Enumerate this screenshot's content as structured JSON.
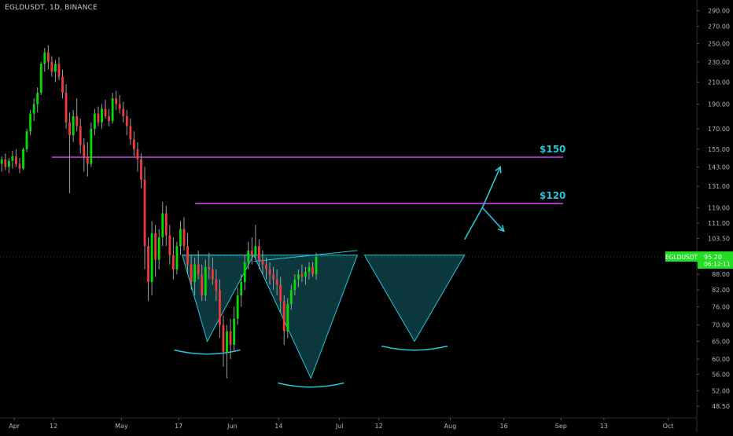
{
  "header": {
    "symbol": "EGLDUSDT",
    "timeframe": "1D",
    "exchange": "BINANCE",
    "title_text": "EGLDUSDT, 1D, BINANCE"
  },
  "price_badge": {
    "symbol": "EGLDUSDT",
    "price": "95.20",
    "countdown": "06:12:11",
    "color": "#22dd22"
  },
  "annotations": {
    "level_high_label": "$150",
    "level_low_label": "$120",
    "label_color": "#26c6da",
    "line_color": "#e040fb",
    "pattern_color": "#26c6da"
  },
  "colors": {
    "up": "#26a69a",
    "up_bright": "#00e000",
    "down": "#ef3b3b",
    "background": "#000000",
    "axis_text": "#b2b5be"
  },
  "chart_data": {
    "type": "candlestick",
    "title": "EGLDUSDT, 1D, BINANCE",
    "y_scale": "log",
    "ylim": [
      45,
      300
    ],
    "x_range": [
      "2021-03-28",
      "2021-10-09"
    ],
    "y_ticks": [
      "290.00",
      "270.00",
      "250.00",
      "230.00",
      "210.00",
      "190.00",
      "170.00",
      "155.00",
      "143.00",
      "131.00",
      "119.00",
      "111.00",
      "103.50",
      "95.20",
      "88.00",
      "82.00",
      "76.00",
      "70.00",
      "65.00",
      "60.00",
      "56.00",
      "52.00",
      "48.50"
    ],
    "x_ticks": [
      {
        "label": "Apr",
        "date": "2021-04-01"
      },
      {
        "label": "12",
        "date": "2021-04-12"
      },
      {
        "label": "May",
        "date": "2021-05-01"
      },
      {
        "label": "17",
        "date": "2021-05-17"
      },
      {
        "label": "Jun",
        "date": "2021-06-01"
      },
      {
        "label": "14",
        "date": "2021-06-14"
      },
      {
        "label": "Jul",
        "date": "2021-07-01"
      },
      {
        "label": "12",
        "date": "2021-07-12"
      },
      {
        "label": "Aug",
        "date": "2021-08-01"
      },
      {
        "label": "16",
        "date": "2021-08-16"
      },
      {
        "label": "Sep",
        "date": "2021-09-01"
      },
      {
        "label": "13",
        "date": "2021-09-13"
      },
      {
        "label": "Oct",
        "date": "2021-10-01"
      }
    ],
    "start_date": "2021-03-28",
    "candles": [
      [
        145,
        150,
        140,
        148
      ],
      [
        148,
        152,
        141,
        143
      ],
      [
        143,
        149,
        139,
        147
      ],
      [
        147,
        154,
        142,
        150
      ],
      [
        150,
        155,
        143,
        145
      ],
      [
        145,
        149,
        139,
        142
      ],
      [
        142,
        156,
        141,
        155
      ],
      [
        155,
        170,
        153,
        168
      ],
      [
        168,
        185,
        165,
        182
      ],
      [
        182,
        195,
        176,
        190
      ],
      [
        190,
        205,
        183,
        200
      ],
      [
        200,
        230,
        198,
        228
      ],
      [
        228,
        245,
        220,
        240
      ],
      [
        240,
        248,
        222,
        230
      ],
      [
        230,
        236,
        215,
        220
      ],
      [
        220,
        232,
        210,
        228
      ],
      [
        228,
        235,
        212,
        215
      ],
      [
        215,
        222,
        195,
        200
      ],
      [
        200,
        208,
        170,
        175
      ],
      [
        175,
        183,
        127,
        165
      ],
      [
        165,
        185,
        160,
        180
      ],
      [
        180,
        195,
        168,
        172
      ],
      [
        172,
        178,
        152,
        158
      ],
      [
        158,
        163,
        140,
        150
      ],
      [
        150,
        160,
        137,
        145
      ],
      [
        145,
        175,
        143,
        170
      ],
      [
        170,
        186,
        165,
        182
      ],
      [
        182,
        188,
        172,
        175
      ],
      [
        175,
        190,
        170,
        186
      ],
      [
        186,
        194,
        178,
        180
      ],
      [
        180,
        186,
        172,
        176
      ],
      [
        176,
        200,
        174,
        195
      ],
      [
        195,
        202,
        185,
        190
      ],
      [
        190,
        198,
        182,
        186
      ],
      [
        186,
        192,
        175,
        180
      ],
      [
        180,
        185,
        165,
        172
      ],
      [
        172,
        178,
        158,
        162
      ],
      [
        162,
        168,
        150,
        155
      ],
      [
        155,
        160,
        140,
        148
      ],
      [
        148,
        152,
        130,
        135
      ],
      [
        135,
        143,
        90,
        100
      ],
      [
        100,
        104,
        78,
        85
      ],
      [
        85,
        112,
        80,
        106
      ],
      [
        106,
        110,
        87,
        94
      ],
      [
        94,
        108,
        90,
        104
      ],
      [
        104,
        122,
        100,
        116
      ],
      [
        116,
        120,
        100,
        105
      ],
      [
        105,
        110,
        92,
        96
      ],
      [
        96,
        104,
        86,
        90
      ],
      [
        90,
        102,
        88,
        100
      ],
      [
        100,
        112,
        96,
        108
      ],
      [
        108,
        114,
        98,
        100
      ],
      [
        100,
        106,
        88,
        92
      ],
      [
        92,
        96,
        82,
        85
      ],
      [
        85,
        95,
        80,
        92
      ],
      [
        92,
        98,
        86,
        88
      ],
      [
        88,
        92,
        78,
        80
      ],
      [
        80,
        94,
        78,
        91
      ],
      [
        91,
        97,
        86,
        90
      ],
      [
        90,
        95,
        84,
        86
      ],
      [
        86,
        90,
        78,
        82
      ],
      [
        82,
        86,
        66,
        70
      ],
      [
        70,
        73,
        58,
        62
      ],
      [
        62,
        70,
        55,
        68
      ],
      [
        68,
        72,
        60,
        64
      ],
      [
        64,
        76,
        62,
        72
      ],
      [
        72,
        83,
        70,
        80
      ],
      [
        80,
        88,
        76,
        85
      ],
      [
        85,
        96,
        82,
        93
      ],
      [
        93,
        102,
        90,
        98
      ],
      [
        98,
        104,
        92,
        96
      ],
      [
        96,
        110,
        94,
        100
      ],
      [
        100,
        103,
        90,
        94
      ],
      [
        94,
        98,
        88,
        92
      ],
      [
        92,
        95,
        86,
        90
      ],
      [
        90,
        93,
        84,
        88
      ],
      [
        88,
        91,
        82,
        86
      ],
      [
        86,
        90,
        80,
        84
      ],
      [
        84,
        87,
        74,
        78
      ],
      [
        78,
        80,
        64,
        68
      ],
      [
        68,
        79,
        66,
        77
      ],
      [
        77,
        84,
        75,
        82
      ],
      [
        82,
        88,
        80,
        86
      ],
      [
        86,
        90,
        83,
        88
      ],
      [
        88,
        92,
        85,
        87
      ],
      [
        87,
        91,
        84,
        89
      ],
      [
        89,
        93,
        86,
        91
      ],
      [
        91,
        93,
        87,
        88
      ],
      [
        88,
        97,
        86,
        95.2
      ]
    ],
    "levels": [
      {
        "label": "$150",
        "price": 149.5
      },
      {
        "label": "$120",
        "price": 121.2
      }
    ],
    "pattern": {
      "name": "inverse head and shoulders",
      "neckline": [
        {
          "date": "2021-05-18",
          "price": 96
        },
        {
          "date": "2021-08-05",
          "price": 96
        }
      ],
      "left_shoulder_low": {
        "date": "2021-05-25",
        "price": 65
      },
      "head_low": {
        "date": "2021-06-23",
        "price": 55
      },
      "right_shoulder_low": {
        "date": "2021-07-22",
        "price": 65
      }
    },
    "projection": [
      {
        "date": "2021-08-05",
        "price": 103
      },
      {
        "date": "2021-08-10",
        "price": 119
      },
      {
        "date": "2021-08-15",
        "price": 143
      },
      {
        "date": "2021-08-16",
        "price": 107
      }
    ]
  }
}
